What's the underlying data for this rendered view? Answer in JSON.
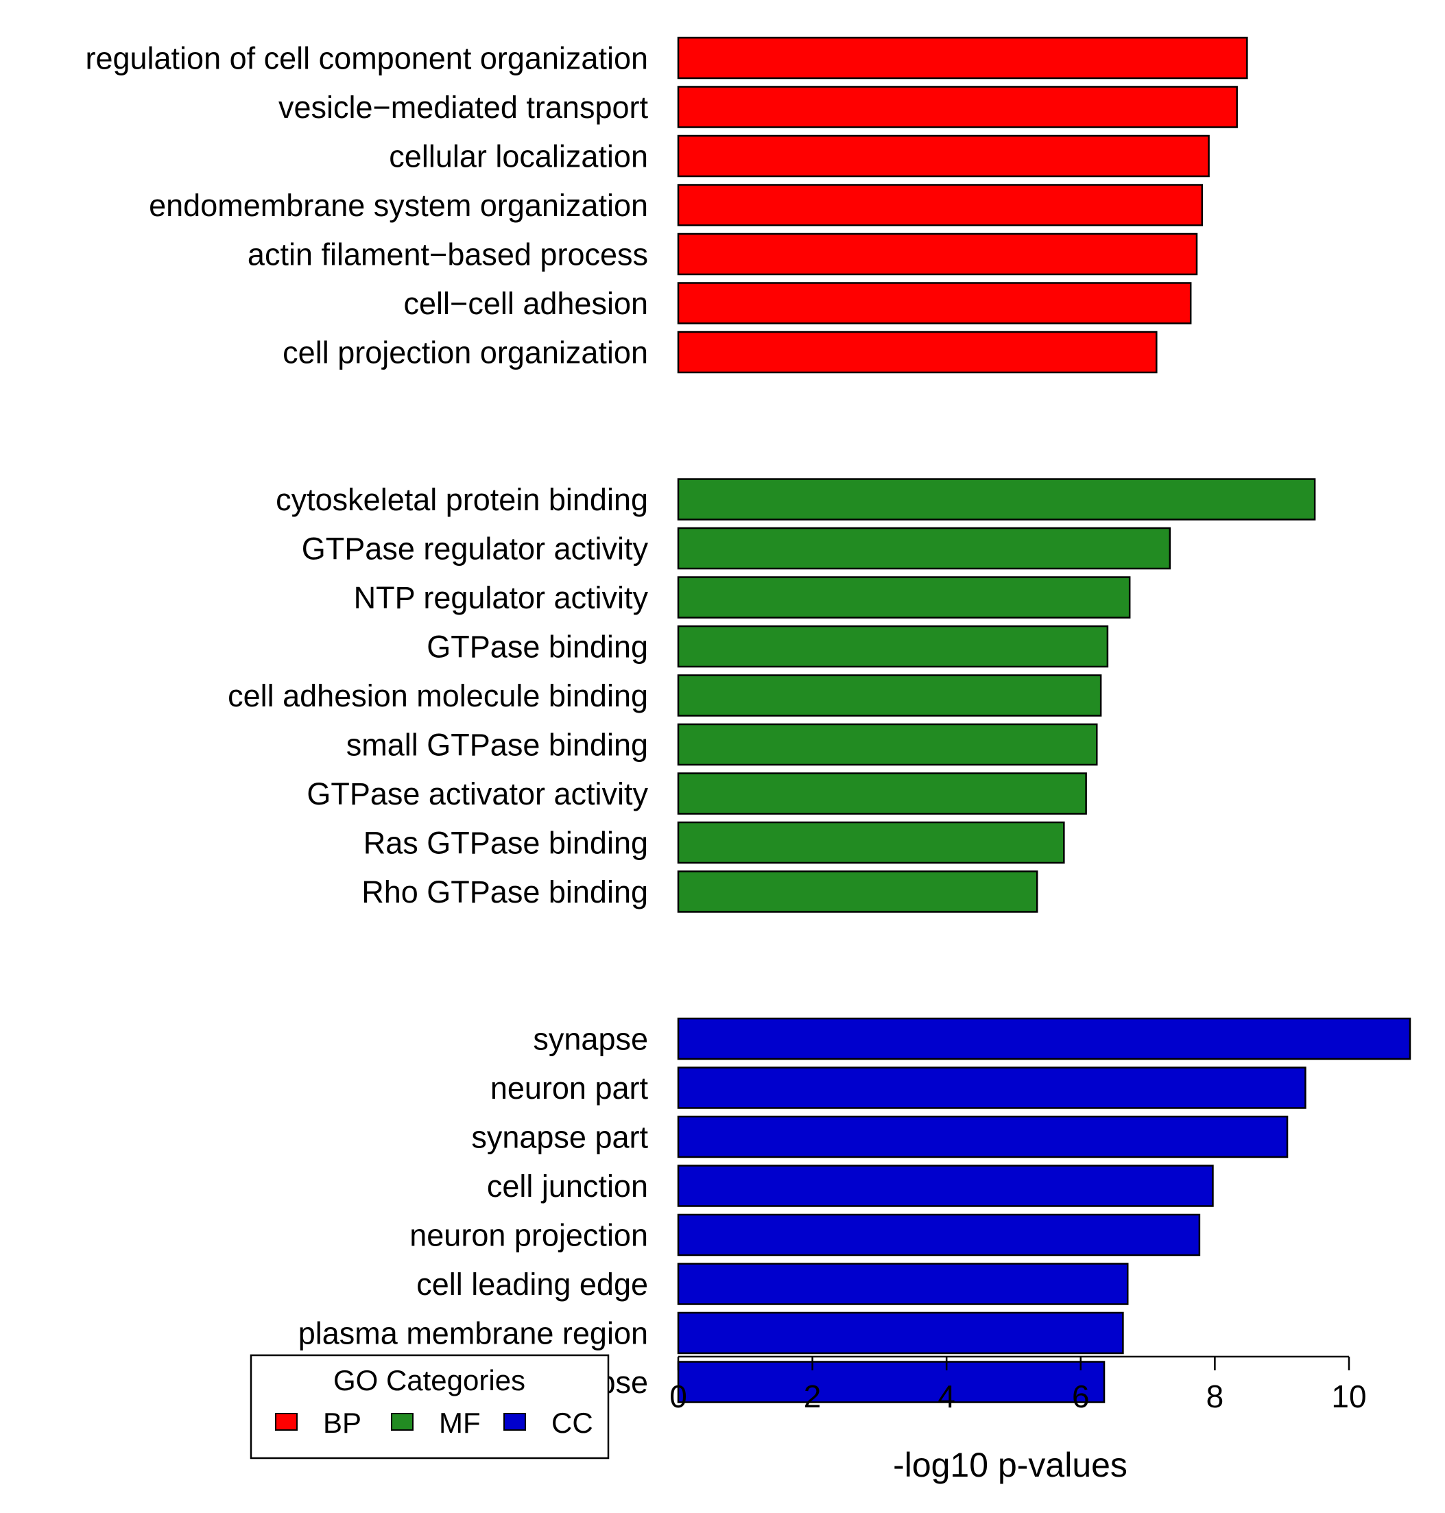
{
  "chart_data": {
    "type": "bar",
    "orientation": "horizontal",
    "title": "",
    "xlabel": "-log10 p-values",
    "ylabel": "",
    "xlim": [
      0,
      11
    ],
    "x_ticks": [
      0,
      2,
      4,
      6,
      8,
      10
    ],
    "grid": false,
    "groups": [
      {
        "name": "BP",
        "color": "#ff0000",
        "categories": [
          "regulation of cell component organization",
          "vesicle−mediated transport",
          "cellular localization",
          "endomembrane system organization",
          "actin filament−based process",
          "cell−cell adhesion",
          "cell projection organization"
        ],
        "values": [
          8.48,
          8.33,
          7.91,
          7.81,
          7.73,
          7.64,
          7.13
        ]
      },
      {
        "name": "MF",
        "color": "#228b22",
        "categories": [
          "cytoskeletal protein binding",
          "GTPase regulator activity",
          "NTP regulator activity",
          "GTPase binding",
          "cell adhesion molecule binding",
          "small GTPase binding",
          "GTPase activator activity",
          "Ras GTPase binding",
          "Rho GTPase binding"
        ],
        "values": [
          9.49,
          7.33,
          6.73,
          6.4,
          6.3,
          6.24,
          6.08,
          5.75,
          5.35
        ]
      },
      {
        "name": "CC",
        "color": "#0000cd",
        "categories": [
          "synapse",
          "neuron part",
          "synapse part",
          "cell junction",
          "neuron projection",
          "cell leading edge",
          "plasma membrane region",
          "postsynapse"
        ],
        "values": [
          10.91,
          9.35,
          9.08,
          7.97,
          7.77,
          6.7,
          6.63,
          6.35
        ]
      }
    ],
    "legend": {
      "title": "GO Categories",
      "placement": "bottom-left",
      "entries": [
        {
          "label": "BP",
          "color": "#ff0000"
        },
        {
          "label": "MF",
          "color": "#228b22"
        },
        {
          "label": "CC",
          "color": "#0000cd"
        }
      ]
    }
  }
}
